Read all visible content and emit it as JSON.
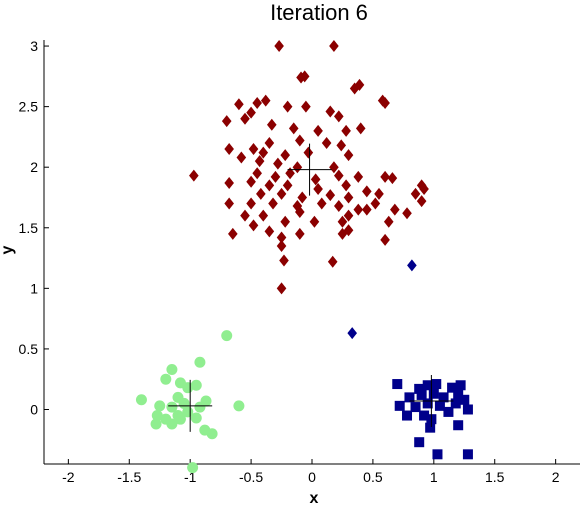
{
  "chart_data": {
    "type": "scatter",
    "title": "Iteration 6",
    "xlabel": "x",
    "ylabel": "y",
    "xlim": [
      -2.2,
      2.2
    ],
    "ylim": [
      -0.45,
      3.05
    ],
    "xticks": [
      -2,
      -1.5,
      -1,
      -0.5,
      0,
      0.5,
      1,
      1.5,
      2
    ],
    "xtick_labels": [
      "-2",
      "-1.5",
      "-1",
      "-0.5",
      "0",
      "0.5",
      "1",
      "1.5",
      "2"
    ],
    "yticks": [
      0,
      0.5,
      1,
      1.5,
      2,
      2.5,
      3
    ],
    "ytick_labels": [
      "0",
      "0.5",
      "1",
      "1.5",
      "2",
      "2.5",
      "3"
    ],
    "grid": false,
    "series": [
      {
        "marker": "diamond",
        "color": "#8B0000",
        "points": [
          [
            -0.27,
            3.0
          ],
          [
            0.18,
            3.0
          ],
          [
            -0.09,
            2.74
          ],
          [
            -0.06,
            2.75
          ],
          [
            0.35,
            2.65
          ],
          [
            0.39,
            2.68
          ],
          [
            -0.6,
            2.52
          ],
          [
            -0.45,
            2.53
          ],
          [
            -0.38,
            2.55
          ],
          [
            -0.5,
            2.45
          ],
          [
            -0.2,
            2.5
          ],
          [
            -0.05,
            2.5
          ],
          [
            0.15,
            2.46
          ],
          [
            0.22,
            2.42
          ],
          [
            0.58,
            2.55
          ],
          [
            0.6,
            2.53
          ],
          [
            -0.7,
            2.38
          ],
          [
            -0.55,
            2.4
          ],
          [
            -0.33,
            2.35
          ],
          [
            -0.15,
            2.32
          ],
          [
            0.05,
            2.3
          ],
          [
            0.28,
            2.3
          ],
          [
            0.4,
            2.32
          ],
          [
            -0.35,
            2.2
          ],
          [
            -0.1,
            2.22
          ],
          [
            0.12,
            2.2
          ],
          [
            0.24,
            2.18
          ],
          [
            -0.68,
            2.15
          ],
          [
            -0.48,
            2.15
          ],
          [
            -0.4,
            2.12
          ],
          [
            -0.22,
            2.1
          ],
          [
            -0.03,
            2.12
          ],
          [
            0.3,
            2.1
          ],
          [
            -0.58,
            2.08
          ],
          [
            -0.43,
            2.05
          ],
          [
            -0.28,
            2.03
          ],
          [
            -0.12,
            2.0
          ],
          [
            0.18,
            2.0
          ],
          [
            -0.97,
            1.93
          ],
          [
            -0.45,
            1.95
          ],
          [
            -0.3,
            1.92
          ],
          [
            -0.18,
            1.95
          ],
          [
            0.03,
            1.9
          ],
          [
            0.22,
            1.93
          ],
          [
            0.38,
            1.92
          ],
          [
            0.6,
            1.92
          ],
          [
            0.66,
            1.91
          ],
          [
            -0.68,
            1.87
          ],
          [
            -0.5,
            1.88
          ],
          [
            -0.35,
            1.85
          ],
          [
            -0.2,
            1.85
          ],
          [
            0.05,
            1.82
          ],
          [
            0.28,
            1.85
          ],
          [
            0.45,
            1.8
          ],
          [
            0.55,
            1.78
          ],
          [
            0.9,
            1.85
          ],
          [
            0.92,
            1.82
          ],
          [
            -0.42,
            1.78
          ],
          [
            -0.25,
            1.78
          ],
          [
            -0.08,
            1.75
          ],
          [
            0.15,
            1.77
          ],
          [
            0.3,
            1.75
          ],
          [
            0.85,
            1.78
          ],
          [
            -0.68,
            1.7
          ],
          [
            -0.5,
            1.7
          ],
          [
            -0.32,
            1.7
          ],
          [
            -0.12,
            1.68
          ],
          [
            0.08,
            1.7
          ],
          [
            0.22,
            1.68
          ],
          [
            0.38,
            1.65
          ],
          [
            0.45,
            1.65
          ],
          [
            0.52,
            1.7
          ],
          [
            0.68,
            1.65
          ],
          [
            -0.1,
            1.63
          ],
          [
            0.3,
            1.6
          ],
          [
            -0.55,
            1.6
          ],
          [
            -0.4,
            1.6
          ],
          [
            -0.22,
            1.55
          ],
          [
            0.02,
            1.55
          ],
          [
            0.25,
            1.55
          ],
          [
            0.78,
            1.62
          ],
          [
            0.9,
            1.72
          ],
          [
            -0.48,
            1.52
          ],
          [
            -0.65,
            1.45
          ],
          [
            -0.35,
            1.47
          ],
          [
            -0.25,
            1.42
          ],
          [
            -0.1,
            1.45
          ],
          [
            0.25,
            1.45
          ],
          [
            0.3,
            1.48
          ],
          [
            0.63,
            1.55
          ],
          [
            0.6,
            1.4
          ],
          [
            -0.25,
            1.35
          ],
          [
            -0.23,
            1.23
          ],
          [
            0.17,
            1.22
          ],
          [
            -0.25,
            1.0
          ]
        ]
      },
      {
        "marker": "diamond",
        "color": "#00008B",
        "points": [
          [
            0.82,
            1.19
          ],
          [
            0.33,
            0.63
          ]
        ]
      },
      {
        "marker": "square",
        "color": "#00008B",
        "points": [
          [
            0.7,
            0.21
          ],
          [
            0.88,
            0.17
          ],
          [
            0.95,
            0.2
          ],
          [
            1.02,
            0.21
          ],
          [
            1.15,
            0.18
          ],
          [
            1.22,
            0.2
          ],
          [
            0.8,
            0.1
          ],
          [
            0.9,
            0.12
          ],
          [
            1.0,
            0.13
          ],
          [
            1.08,
            0.1
          ],
          [
            1.2,
            0.13
          ],
          [
            1.25,
            0.08
          ],
          [
            0.72,
            0.03
          ],
          [
            0.85,
            0.02
          ],
          [
            0.95,
            0.05
          ],
          [
            1.05,
            0.03
          ],
          [
            1.18,
            0.05
          ],
          [
            0.78,
            -0.05
          ],
          [
            0.92,
            -0.05
          ],
          [
            0.98,
            -0.08
          ],
          [
            1.12,
            -0.02
          ],
          [
            1.28,
            0.0
          ],
          [
            0.97,
            -0.15
          ],
          [
            1.2,
            -0.13
          ],
          [
            0.88,
            -0.27
          ],
          [
            1.03,
            -0.37
          ],
          [
            1.28,
            -0.37
          ]
        ]
      },
      {
        "marker": "circle",
        "color": "#90EE90",
        "points": [
          [
            -0.7,
            0.61
          ],
          [
            -0.92,
            0.39
          ],
          [
            -1.15,
            0.33
          ],
          [
            -1.08,
            0.22
          ],
          [
            -1.02,
            0.18
          ],
          [
            -0.95,
            0.2
          ],
          [
            -1.2,
            0.25
          ],
          [
            -1.4,
            0.08
          ],
          [
            -1.1,
            0.1
          ],
          [
            -0.87,
            0.07
          ],
          [
            -1.25,
            0.03
          ],
          [
            -1.15,
            0.02
          ],
          [
            -1.05,
            0.05
          ],
          [
            -0.92,
            0.02
          ],
          [
            -1.27,
            -0.05
          ],
          [
            -1.2,
            -0.08
          ],
          [
            -1.1,
            -0.05
          ],
          [
            -1.02,
            -0.02
          ],
          [
            -0.95,
            -0.07
          ],
          [
            -0.6,
            0.03
          ],
          [
            -1.28,
            -0.12
          ],
          [
            -1.15,
            -0.12
          ],
          [
            -1.08,
            -0.08
          ],
          [
            -0.88,
            -0.17
          ],
          [
            -0.82,
            -0.2
          ],
          [
            -0.98,
            -0.48
          ]
        ]
      }
    ],
    "centroids": [
      [
        -0.02,
        1.98
      ],
      [
        -1.0,
        0.03
      ],
      [
        0.98,
        0.07
      ]
    ]
  }
}
